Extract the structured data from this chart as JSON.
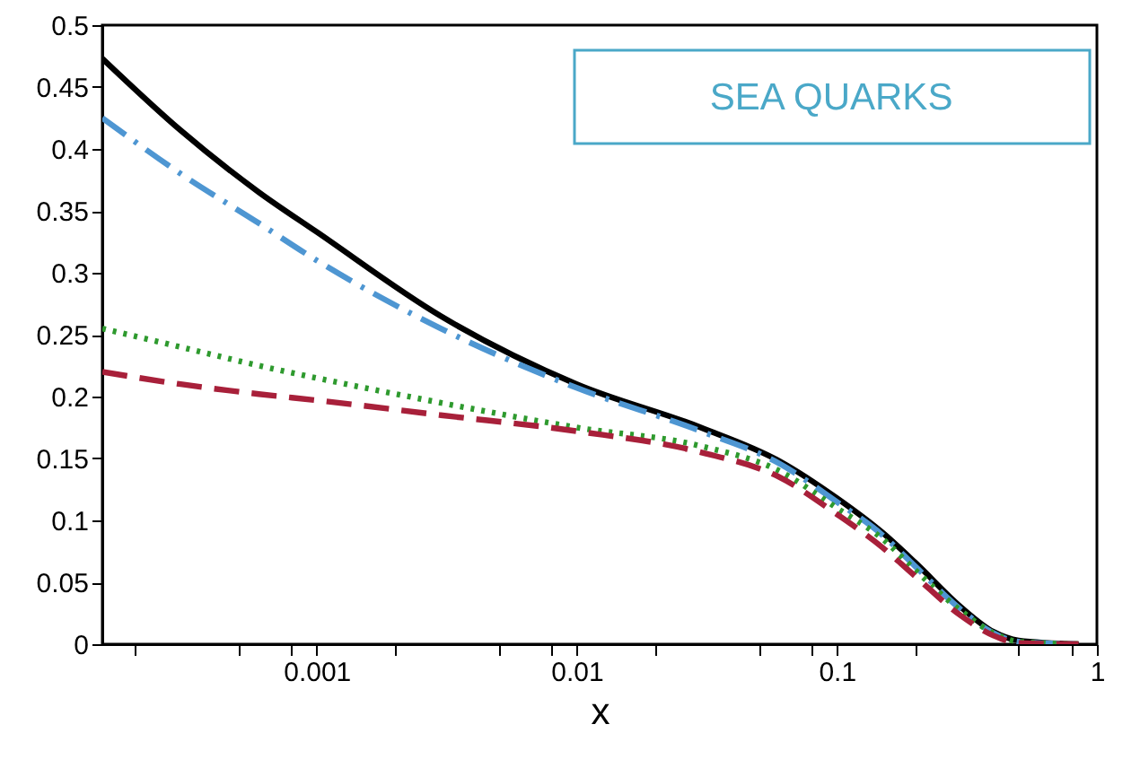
{
  "chart_data": {
    "type": "line",
    "xlabel": "x",
    "annotations": [
      "SEA QUARKS"
    ],
    "log": "x",
    "grid": false,
    "marker": "none",
    "xlim": [
      0.00015,
      1
    ],
    "xticks": [
      {
        "value": 0.0002,
        "label": null
      },
      {
        "value": 0.0005,
        "label": null
      },
      {
        "value": 0.0008,
        "label": null
      },
      0.001,
      {
        "value": 0.002,
        "label": null
      },
      {
        "value": 0.005,
        "label": null
      },
      {
        "value": 0.008,
        "label": null
      },
      0.01,
      {
        "value": 0.02,
        "label": null
      },
      {
        "value": 0.05,
        "label": null
      },
      {
        "value": 0.08,
        "label": null
      },
      0.1,
      {
        "value": 0.2,
        "label": null
      },
      {
        "value": 0.5,
        "label": null
      },
      {
        "value": 0.8,
        "label": null
      },
      1
    ],
    "ylim": [
      0,
      0.5
    ],
    "yticks": [
      0,
      0.05,
      0.1,
      0.15,
      0.2,
      0.25,
      0.3,
      0.35,
      0.4,
      0.45,
      0.5
    ],
    "x": [
      0.00015,
      0.0003,
      0.0006,
      0.001,
      0.003,
      0.01,
      0.03,
      0.06,
      0.1,
      0.15,
      0.2,
      0.3,
      0.4,
      0.5,
      0.85
    ],
    "series": [
      {
        "color": "#000000",
        "line_style": "solid",
        "values": [
          0.473,
          0.415,
          0.365,
          0.333,
          0.265,
          0.21,
          0.175,
          0.148,
          0.118,
          0.09,
          0.066,
          0.03,
          0.01,
          0.003,
          0
        ]
      },
      {
        "color": "#4e96d2",
        "line_style": "dashdot",
        "values": [
          0.425,
          0.38,
          0.34,
          0.31,
          0.255,
          0.207,
          0.172,
          0.146,
          0.115,
          0.088,
          0.063,
          0.028,
          0.009,
          0.002,
          0
        ]
      },
      {
        "color": "#2e9a2e",
        "line_style": "dotted",
        "values": [
          0.255,
          0.24,
          0.225,
          0.215,
          0.195,
          0.175,
          0.16,
          0.14,
          0.11,
          0.085,
          0.06,
          0.027,
          0.009,
          0.002,
          0
        ]
      },
      {
        "color": "#a8203a",
        "line_style": "dashed",
        "values": [
          0.22,
          0.21,
          0.202,
          0.197,
          0.185,
          0.172,
          0.155,
          0.135,
          0.105,
          0.078,
          0.055,
          0.023,
          0.007,
          0.001,
          0
        ]
      }
    ]
  }
}
